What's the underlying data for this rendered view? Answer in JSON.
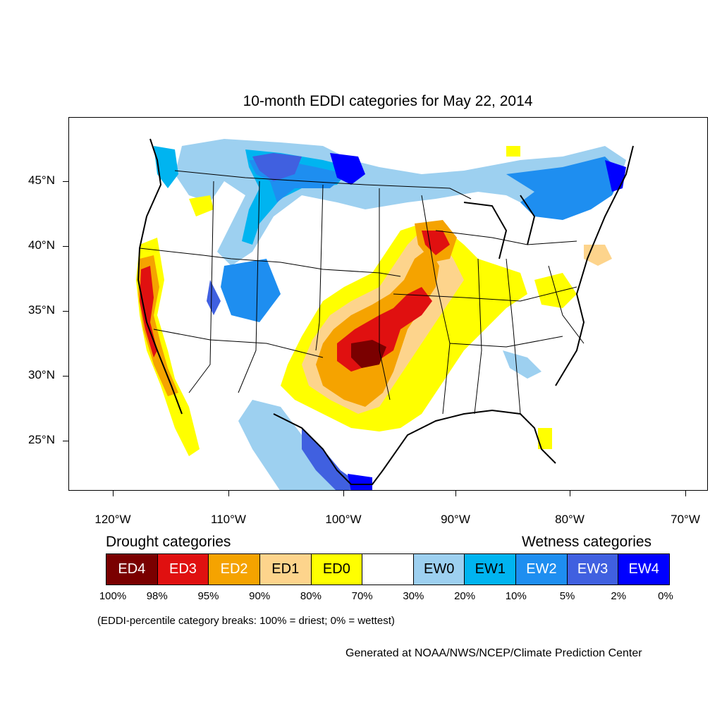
{
  "title": "10-month EDDI categories for May 22, 2014",
  "axes": {
    "lat_labels": [
      "45°N",
      "40°N",
      "35°N",
      "30°N",
      "25°N"
    ],
    "lon_labels": [
      "120°W",
      "110°W",
      "100°W",
      "90°W",
      "80°W",
      "70°W"
    ],
    "lat_values": [
      45,
      40,
      35,
      30,
      25
    ],
    "lon_values": [
      -120,
      -110,
      -100,
      -90,
      -80,
      -70
    ],
    "lat_range": [
      21,
      49.5
    ],
    "lon_range": [
      -124,
      -68.5
    ]
  },
  "legend": {
    "drought_heading": "Drought categories",
    "wetness_heading": "Wetness categories",
    "categories": [
      {
        "label": "ED4",
        "color": "#7a0000",
        "text_color": "#ffffff"
      },
      {
        "label": "ED3",
        "color": "#e01010",
        "text_color": "#ffffff"
      },
      {
        "label": "ED2",
        "color": "#f5a300",
        "text_color": "#ffffff"
      },
      {
        "label": "ED1",
        "color": "#fdd48c",
        "text_color": "#000000"
      },
      {
        "label": "ED0",
        "color": "#ffff00",
        "text_color": "#000000"
      },
      {
        "label": "",
        "color": "#ffffff",
        "text_color": "#000000"
      },
      {
        "label": "EW0",
        "color": "#9dd0f0",
        "text_color": "#000000"
      },
      {
        "label": "EW1",
        "color": "#00b4f0",
        "text_color": "#000000"
      },
      {
        "label": "EW2",
        "color": "#1e8ef0",
        "text_color": "#ffffff"
      },
      {
        "label": "EW3",
        "color": "#4060e0",
        "text_color": "#ffffff"
      },
      {
        "label": "EW4",
        "color": "#0000ff",
        "text_color": "#ffffff"
      }
    ],
    "percentiles": [
      "100%",
      "98%",
      "95%",
      "90%",
      "80%",
      "70%",
      "30%",
      "20%",
      "10%",
      "5%",
      "2%",
      "0%"
    ],
    "note": "(EDDI-percentile category breaks: 100% = driest; 0% = wettest)"
  },
  "credit": "Generated at NOAA/NWS/NCEP/Climate Prediction Center"
}
